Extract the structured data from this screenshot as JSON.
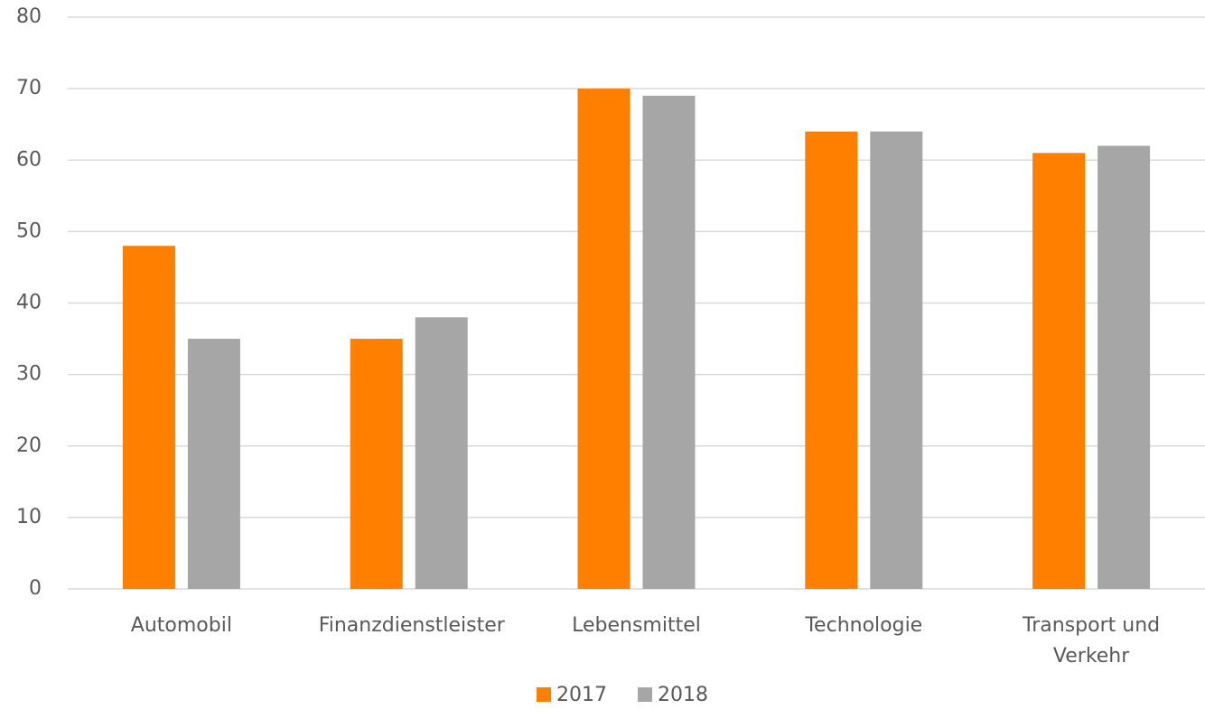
{
  "chart_data": {
    "type": "bar",
    "categories": [
      "Automobil",
      "Finanzdienstleister",
      "Lebensmittel",
      "Technologie",
      "Transport und Verkehr"
    ],
    "series": [
      {
        "name": "2017",
        "color": "#ff7f00",
        "values": [
          48,
          35,
          70,
          64,
          61
        ]
      },
      {
        "name": "2018",
        "color": "#a6a6a6",
        "values": [
          35,
          38,
          69,
          64,
          62
        ]
      }
    ],
    "ylim": [
      0,
      80
    ],
    "yticks": [
      0,
      10,
      20,
      30,
      40,
      50,
      60,
      70,
      80
    ],
    "grid": true,
    "legend": "bottom"
  }
}
